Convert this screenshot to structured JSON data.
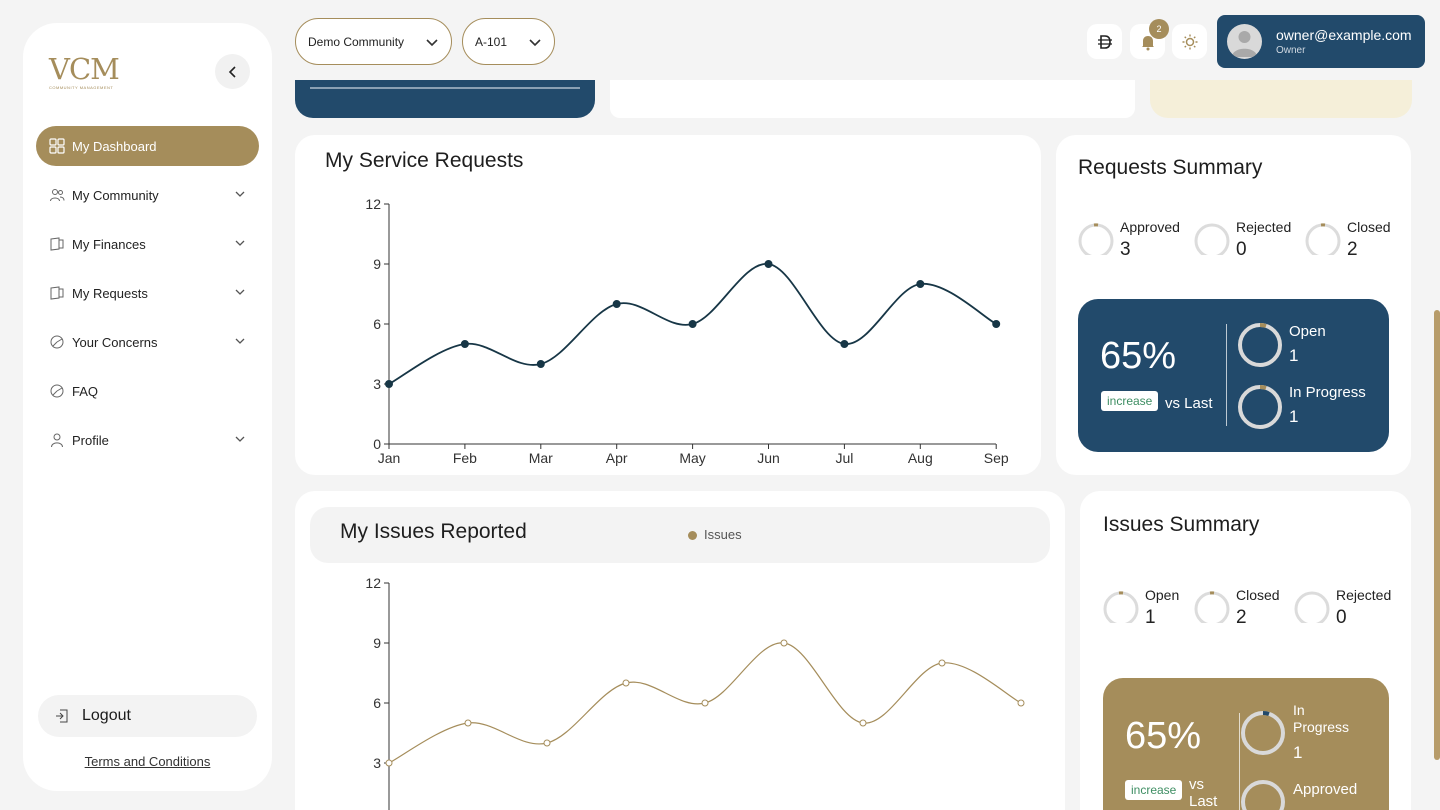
{
  "sidebar": {
    "logo_mark": "VCM",
    "logo_sub": "COMMUNITY MANAGEMENT",
    "items": [
      {
        "label": "My Dashboard"
      },
      {
        "label": "My Community"
      },
      {
        "label": "My Finances"
      },
      {
        "label": "My Requests"
      },
      {
        "label": "Your Concerns"
      },
      {
        "label": "FAQ"
      },
      {
        "label": "Profile"
      }
    ],
    "logout_label": "Logout",
    "terms_label": "Terms and Conditions"
  },
  "header": {
    "community_select": "Demo Community",
    "unit_select": "A-101",
    "notification_count": "2",
    "user_email": "owner@example.com",
    "user_role": "Owner"
  },
  "service_requests": {
    "title": "My Service Requests",
    "chart_data": {
      "type": "line",
      "categories": [
        "Jan",
        "Feb",
        "Mar",
        "Apr",
        "May",
        "Jun",
        "Jul",
        "Aug",
        "Sep"
      ],
      "values": [
        3,
        5,
        4,
        7,
        6,
        9,
        5,
        8,
        6
      ],
      "yticks": [
        "0",
        "3",
        "6",
        "9",
        "12"
      ],
      "ylim": [
        0,
        12
      ]
    }
  },
  "requests_summary": {
    "title": "Requests Summary",
    "stats": [
      {
        "label": "Approved",
        "value": "3"
      },
      {
        "label": "Rejected",
        "value": "0"
      },
      {
        "label": "Closed",
        "value": "2"
      }
    ],
    "percent": "65%",
    "increase_label": "increase",
    "vs_label": "vs Last",
    "open_label": "Open",
    "open_value": "1",
    "progress_label": "In Progress",
    "progress_value": "1"
  },
  "issues_reported": {
    "title": "My Issues Reported",
    "legend": "Issues",
    "chart_data": {
      "type": "line",
      "values": [
        3,
        5,
        4,
        7,
        6,
        9,
        5,
        8,
        6
      ],
      "yticks": [
        "3",
        "6",
        "9",
        "12"
      ],
      "ylim": [
        0,
        12
      ],
      "series": [
        {
          "name": "Issues",
          "values": [
            3,
            5,
            4,
            7,
            6,
            9,
            5,
            8,
            6
          ]
        }
      ]
    }
  },
  "issues_summary": {
    "title": "Issues Summary",
    "stats": [
      {
        "label": "Open",
        "value": "1"
      },
      {
        "label": "Closed",
        "value": "2"
      },
      {
        "label": "Rejected",
        "value": "0"
      }
    ],
    "percent": "65%",
    "increase_label": "increase",
    "vs_label_1": "vs",
    "vs_label_2": "Last",
    "progress_label_1": "In",
    "progress_label_2": "Progress",
    "progress_value": "1",
    "approved_label": "Approved"
  },
  "colors": {
    "gold": "#a58d5b",
    "navy": "#224a6b",
    "line_dark": "#173646"
  }
}
